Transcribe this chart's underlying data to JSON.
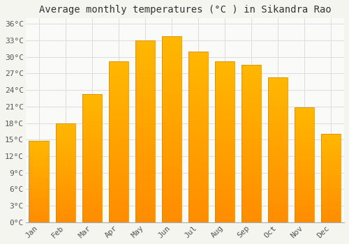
{
  "title": "Average monthly temperatures (°C ) in Sikandra Rao",
  "months": [
    "Jan",
    "Feb",
    "Mar",
    "Apr",
    "May",
    "Jun",
    "Jul",
    "Aug",
    "Sep",
    "Oct",
    "Nov",
    "Dec"
  ],
  "values": [
    14.8,
    17.9,
    23.3,
    29.2,
    33.0,
    33.8,
    31.0,
    29.2,
    28.6,
    26.3,
    20.8,
    16.0
  ],
  "bar_color_top": "#FFB700",
  "bar_color_bottom": "#FF8C00",
  "bar_edge_color": "#CC8800",
  "background_color": "#F5F5F0",
  "plot_bg_color": "#FAFAF8",
  "grid_color": "#DDDDDD",
  "title_fontsize": 10,
  "tick_fontsize": 8,
  "ylim": [
    0,
    37
  ],
  "yticks": [
    0,
    3,
    6,
    9,
    12,
    15,
    18,
    21,
    24,
    27,
    30,
    33,
    36
  ]
}
